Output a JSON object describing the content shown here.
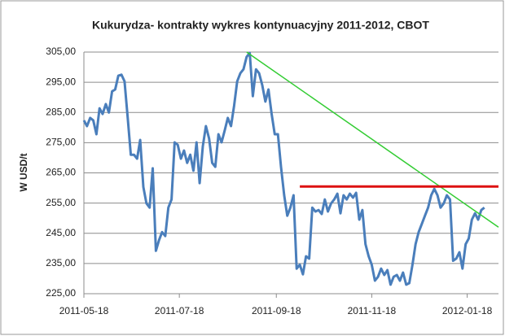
{
  "chart_data": {
    "type": "line",
    "title": "Kukurydza- kontrakty wykres kontynuacyjny 2011-2012,  CBOT",
    "y_label": "W USD/t",
    "xlim": [
      "2011-05-18",
      "2012-02-07"
    ],
    "xticks": [
      "2011-05-18",
      "2011-07-18",
      "2011-09-18",
      "2011-11-18",
      "2012-01-18"
    ],
    "ylim": [
      225,
      305
    ],
    "yticks": [
      {
        "value": 225,
        "label": "225,00"
      },
      {
        "value": 235,
        "label": "235,00"
      },
      {
        "value": 245,
        "label": "245,00"
      },
      {
        "value": 255,
        "label": "255,00"
      },
      {
        "value": 265,
        "label": "265,00"
      },
      {
        "value": 275,
        "label": "275,00"
      },
      {
        "value": 285,
        "label": "285,00"
      },
      {
        "value": 295,
        "label": "295,00"
      },
      {
        "value": 305,
        "label": "305,00"
      }
    ],
    "grid": true,
    "x": [
      "2011-05-18",
      "2011-05-20",
      "2011-05-22",
      "2011-05-24",
      "2011-05-26",
      "2011-05-28",
      "2011-05-30",
      "2011-06-01",
      "2011-06-03",
      "2011-06-05",
      "2011-06-07",
      "2011-06-09",
      "2011-06-11",
      "2011-06-13",
      "2011-06-15",
      "2011-06-17",
      "2011-06-19",
      "2011-06-21",
      "2011-06-23",
      "2011-06-25",
      "2011-06-27",
      "2011-06-29",
      "2011-07-01",
      "2011-07-03",
      "2011-07-05",
      "2011-07-07",
      "2011-07-09",
      "2011-07-11",
      "2011-07-13",
      "2011-07-15",
      "2011-07-17",
      "2011-07-19",
      "2011-07-21",
      "2011-07-23",
      "2011-07-25",
      "2011-07-27",
      "2011-07-29",
      "2011-07-31",
      "2011-08-02",
      "2011-08-04",
      "2011-08-06",
      "2011-08-08",
      "2011-08-10",
      "2011-08-12",
      "2011-08-14",
      "2011-08-16",
      "2011-08-18",
      "2011-08-20",
      "2011-08-22",
      "2011-08-24",
      "2011-08-26",
      "2011-08-28",
      "2011-08-30",
      "2011-09-01",
      "2011-09-03",
      "2011-09-05",
      "2011-09-07",
      "2011-09-09",
      "2011-09-11",
      "2011-09-13",
      "2011-09-15",
      "2011-09-17",
      "2011-09-19",
      "2011-09-21",
      "2011-09-23",
      "2011-09-25",
      "2011-09-27",
      "2011-09-29",
      "2011-10-01",
      "2011-10-03",
      "2011-10-05",
      "2011-10-07",
      "2011-10-09",
      "2011-10-11",
      "2011-10-13",
      "2011-10-15",
      "2011-10-17",
      "2011-10-19",
      "2011-10-21",
      "2011-10-23",
      "2011-10-25",
      "2011-10-27",
      "2011-10-29",
      "2011-10-31",
      "2011-11-02",
      "2011-11-04",
      "2011-11-06",
      "2011-11-08",
      "2011-11-10",
      "2011-11-12",
      "2011-11-14",
      "2011-11-16",
      "2011-11-18",
      "2011-11-20",
      "2011-11-22",
      "2011-11-24",
      "2011-11-26",
      "2011-11-28",
      "2011-11-30",
      "2011-12-02",
      "2011-12-04",
      "2011-12-06",
      "2011-12-08",
      "2011-12-10",
      "2011-12-12",
      "2011-12-14",
      "2011-12-16",
      "2011-12-18",
      "2011-12-20",
      "2011-12-22",
      "2011-12-24",
      "2011-12-26",
      "2011-12-28",
      "2011-12-30",
      "2012-01-01",
      "2012-01-03",
      "2012-01-05",
      "2012-01-07",
      "2012-01-09",
      "2012-01-11",
      "2012-01-13",
      "2012-01-15",
      "2012-01-17",
      "2012-01-19",
      "2012-01-21",
      "2012-01-23",
      "2012-01-25",
      "2012-01-27",
      "2012-01-29"
    ],
    "series": [
      {
        "color": "#4a7ebb",
        "values": [
          282.4,
          280.5,
          283.2,
          282.4,
          277.8,
          286.4,
          284.5,
          287.8,
          285,
          292,
          292.6,
          297.2,
          297.5,
          295.3,
          283.2,
          271,
          271,
          269.7,
          275.9,
          260.3,
          254.9,
          253.5,
          266.5,
          239.2,
          242.7,
          245.4,
          244.1,
          253.5,
          256.2,
          275.1,
          274.3,
          269.7,
          272.4,
          268.3,
          271,
          265.7,
          275.1,
          261.6,
          273.8,
          280.5,
          276.4,
          268.3,
          267,
          277.8,
          275.1,
          279.1,
          283.2,
          280.5,
          287.2,
          295.3,
          298,
          299.3,
          303.4,
          304.7,
          290.4,
          299.3,
          298,
          294,
          288.6,
          292.6,
          284.5,
          277.8,
          277.8,
          267,
          257.6,
          250.8,
          253.5,
          257.6,
          233.3,
          234.6,
          231.4,
          237.4,
          236.6,
          253.5,
          252.2,
          252.7,
          251.4,
          256.2,
          252.2,
          254.9,
          256.2,
          258.1,
          251.6,
          257.6,
          256.2,
          258.1,
          256.8,
          258.4,
          249.5,
          252.7,
          241.4,
          237.4,
          234.6,
          229.3,
          230.6,
          233.3,
          231.2,
          232.8,
          228,
          230.6,
          231.2,
          229.3,
          232,
          228,
          228.5,
          234.6,
          241.4,
          245.4,
          248.1,
          250.8,
          253.5,
          257.6,
          259.7,
          257.6,
          253.5,
          254.9,
          257.6,
          256.2,
          235.9,
          236.6,
          238.7,
          233.3,
          241.4,
          243.3,
          249.5,
          251.6,
          249.5,
          252.7,
          253.5
        ]
      }
    ],
    "trend_lines": [
      {
        "color": "#33cc33",
        "x": [
          "2011-08-30",
          "2012-02-07"
        ],
        "values": [
          305,
          247
        ]
      },
      {
        "color": "#dd1111",
        "x": [
          "2011-10-03",
          "2012-02-07"
        ],
        "values": [
          260.5,
          260.5
        ]
      }
    ]
  }
}
